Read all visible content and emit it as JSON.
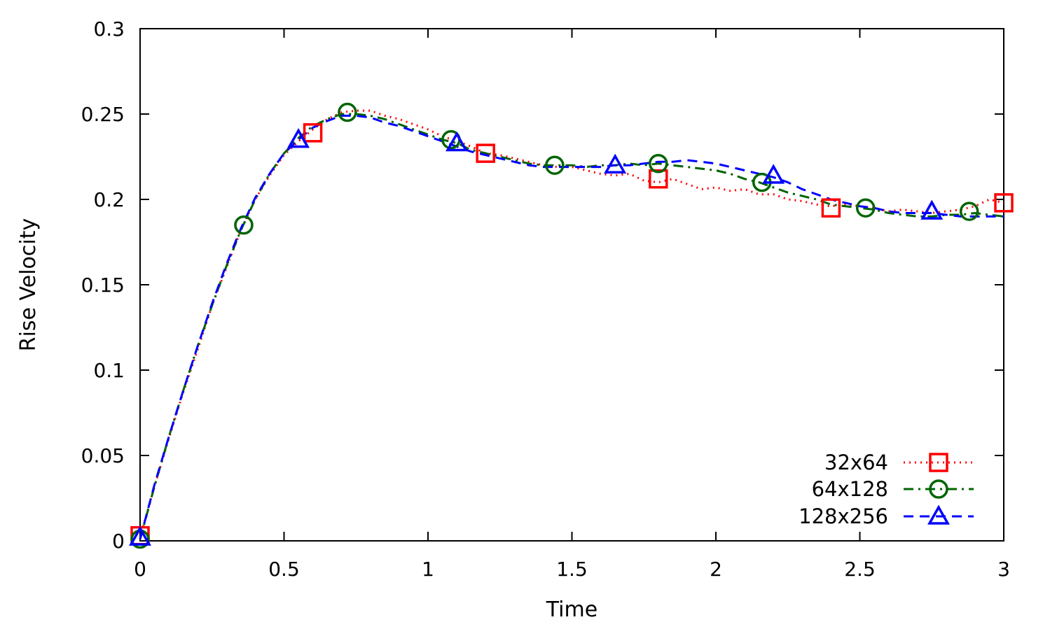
{
  "chart_data": {
    "type": "line",
    "xlabel": "Time",
    "ylabel": "Rise Velocity",
    "xlim": [
      0,
      3
    ],
    "ylim": [
      0,
      0.3
    ],
    "xticks": [
      {
        "value": 0,
        "label": "0"
      },
      {
        "value": 0.5,
        "label": "0.5"
      },
      {
        "value": 1,
        "label": "1"
      },
      {
        "value": 1.5,
        "label": "1.5"
      },
      {
        "value": 2,
        "label": "2"
      },
      {
        "value": 2.5,
        "label": "2.5"
      },
      {
        "value": 3,
        "label": "3"
      }
    ],
    "yticks": [
      {
        "value": 0,
        "label": "0"
      },
      {
        "value": 0.05,
        "label": "0.05"
      },
      {
        "value": 0.1,
        "label": "0.1"
      },
      {
        "value": 0.15,
        "label": "0.15"
      },
      {
        "value": 0.2,
        "label": "0.2"
      },
      {
        "value": 0.25,
        "label": "0.25"
      },
      {
        "value": 0.3,
        "label": "0.3"
      }
    ],
    "grid": false,
    "legend_position": "bottom-right",
    "series": [
      {
        "name": "32x64",
        "color": "#ff0000",
        "line_style": "dotted",
        "marker": "square",
        "x": [
          0,
          0.05,
          0.1,
          0.15,
          0.2,
          0.25,
          0.3,
          0.35,
          0.4,
          0.45,
          0.5,
          0.55,
          0.6,
          0.65,
          0.7,
          0.75,
          0.8,
          0.85,
          0.9,
          0.95,
          1.0,
          1.05,
          1.1,
          1.15,
          1.2,
          1.25,
          1.3,
          1.35,
          1.4,
          1.45,
          1.5,
          1.55,
          1.6,
          1.65,
          1.7,
          1.75,
          1.8,
          1.85,
          1.9,
          1.95,
          2.0,
          2.05,
          2.1,
          2.15,
          2.2,
          2.25,
          2.3,
          2.35,
          2.4,
          2.45,
          2.5,
          2.55,
          2.6,
          2.65,
          2.7,
          2.75,
          2.8,
          2.85,
          2.9,
          2.95,
          3.0
        ],
        "y": [
          0.002,
          0.032,
          0.06,
          0.087,
          0.112,
          0.138,
          0.16,
          0.182,
          0.2,
          0.214,
          0.226,
          0.234,
          0.241,
          0.247,
          0.251,
          0.252,
          0.252,
          0.249,
          0.247,
          0.244,
          0.241,
          0.237,
          0.234,
          0.231,
          0.227,
          0.226,
          0.224,
          0.222,
          0.22,
          0.219,
          0.219,
          0.217,
          0.215,
          0.214,
          0.215,
          0.211,
          0.21,
          0.212,
          0.209,
          0.206,
          0.207,
          0.205,
          0.206,
          0.203,
          0.203,
          0.2,
          0.199,
          0.197,
          0.196,
          0.197,
          0.196,
          0.195,
          0.193,
          0.194,
          0.193,
          0.192,
          0.193,
          0.194,
          0.196,
          0.2,
          0.198
        ],
        "marker_x": [
          0,
          0.6,
          1.2,
          1.8,
          2.4,
          3.0
        ],
        "marker_y": [
          0.003,
          0.239,
          0.227,
          0.212,
          0.195,
          0.198
        ]
      },
      {
        "name": "64x128",
        "color": "#006400",
        "line_style": "dash-dot",
        "marker": "circle",
        "x": [
          0,
          0.05,
          0.1,
          0.15,
          0.2,
          0.25,
          0.3,
          0.35,
          0.4,
          0.45,
          0.5,
          0.55,
          0.6,
          0.65,
          0.7,
          0.75,
          0.8,
          0.85,
          0.9,
          0.95,
          1.0,
          1.05,
          1.1,
          1.15,
          1.2,
          1.25,
          1.3,
          1.35,
          1.4,
          1.45,
          1.5,
          1.55,
          1.6,
          1.65,
          1.7,
          1.75,
          1.8,
          1.85,
          1.9,
          1.95,
          2.0,
          2.05,
          2.1,
          2.15,
          2.2,
          2.25,
          2.3,
          2.35,
          2.4,
          2.45,
          2.5,
          2.55,
          2.6,
          2.65,
          2.7,
          2.75,
          2.8,
          2.85,
          2.9,
          2.95,
          3.0
        ],
        "y": [
          0.001,
          0.032,
          0.061,
          0.088,
          0.114,
          0.138,
          0.161,
          0.182,
          0.2,
          0.215,
          0.227,
          0.236,
          0.243,
          0.247,
          0.25,
          0.25,
          0.249,
          0.247,
          0.244,
          0.241,
          0.238,
          0.235,
          0.233,
          0.229,
          0.227,
          0.225,
          0.223,
          0.221,
          0.22,
          0.22,
          0.22,
          0.219,
          0.22,
          0.22,
          0.221,
          0.22,
          0.221,
          0.22,
          0.219,
          0.218,
          0.217,
          0.215,
          0.212,
          0.21,
          0.207,
          0.204,
          0.202,
          0.2,
          0.197,
          0.196,
          0.195,
          0.194,
          0.192,
          0.191,
          0.19,
          0.19,
          0.191,
          0.191,
          0.192,
          0.191,
          0.19
        ],
        "marker_x": [
          0,
          0.36,
          0.72,
          1.08,
          1.44,
          1.8,
          2.16,
          2.52,
          2.88
        ],
        "marker_y": [
          0.001,
          0.185,
          0.251,
          0.235,
          0.22,
          0.221,
          0.21,
          0.195,
          0.193
        ]
      },
      {
        "name": "128x256",
        "color": "#0000ff",
        "line_style": "dashed",
        "marker": "triangle",
        "x": [
          0,
          0.05,
          0.1,
          0.15,
          0.2,
          0.25,
          0.3,
          0.35,
          0.4,
          0.45,
          0.5,
          0.55,
          0.6,
          0.65,
          0.7,
          0.75,
          0.8,
          0.85,
          0.9,
          0.95,
          1.0,
          1.05,
          1.1,
          1.15,
          1.2,
          1.25,
          1.3,
          1.35,
          1.4,
          1.45,
          1.5,
          1.55,
          1.6,
          1.65,
          1.7,
          1.75,
          1.8,
          1.85,
          1.9,
          1.95,
          2.0,
          2.05,
          2.1,
          2.15,
          2.2,
          2.25,
          2.3,
          2.35,
          2.4,
          2.45,
          2.5,
          2.55,
          2.6,
          2.65,
          2.7,
          2.75,
          2.8,
          2.85,
          2.9,
          2.95,
          3.0
        ],
        "y": [
          0.001,
          0.033,
          0.061,
          0.088,
          0.114,
          0.139,
          0.162,
          0.183,
          0.201,
          0.215,
          0.227,
          0.235,
          0.242,
          0.246,
          0.249,
          0.249,
          0.248,
          0.245,
          0.243,
          0.24,
          0.237,
          0.234,
          0.231,
          0.228,
          0.226,
          0.224,
          0.222,
          0.22,
          0.219,
          0.219,
          0.219,
          0.219,
          0.219,
          0.22,
          0.22,
          0.221,
          0.222,
          0.222,
          0.223,
          0.222,
          0.221,
          0.219,
          0.217,
          0.215,
          0.213,
          0.21,
          0.206,
          0.203,
          0.2,
          0.198,
          0.196,
          0.195,
          0.193,
          0.192,
          0.192,
          0.192,
          0.191,
          0.19,
          0.19,
          0.19,
          0.19
        ],
        "marker_x": [
          0,
          0.55,
          1.1,
          1.65,
          2.2,
          2.75
        ],
        "marker_y": [
          0.002,
          0.235,
          0.233,
          0.22,
          0.214,
          0.193
        ]
      }
    ]
  }
}
